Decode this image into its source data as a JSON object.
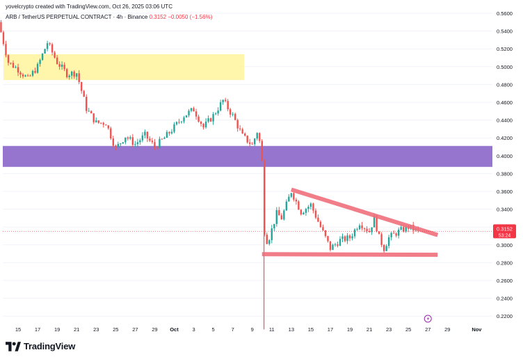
{
  "header": {
    "credit": "yovelcrypto created with TradingView.com, Oct 26, 2025 03:06 UTC",
    "symbol": "ARB / TetherUS PERPETUAL CONTRACT · 4h · Binance",
    "price": "0.3152",
    "change": "−0.0050 (−1.56%)"
  },
  "brand": {
    "name": "TradingView",
    "logo_icon": "tradingview-logo-icon"
  },
  "price_label": {
    "price": "0.3152",
    "countdown": "53:24"
  },
  "colors": {
    "up": "#26a69a",
    "down": "#ef5350",
    "yellow_zone": "#fff59d",
    "purple_zone": "#9575cd",
    "pattern": "#ef6f7c",
    "axis_text": "#131722"
  },
  "chart_data": {
    "type": "candlestick",
    "title": "",
    "timeframe": "4h",
    "yaxis": {
      "ticks": [
        "0.5600",
        "0.5400",
        "0.5200",
        "0.5000",
        "0.4800",
        "0.4600",
        "0.4400",
        "0.4200",
        "0.4000",
        "0.3800",
        "0.3600",
        "0.3400",
        "0.3200",
        "0.3000",
        "0.2800",
        "0.2600",
        "0.2400",
        "0.2200"
      ],
      "range": [
        0.205,
        0.565
      ]
    },
    "xaxis": {
      "ticks": [
        "15",
        "17",
        "19",
        "21",
        "23",
        "25",
        "27",
        "29",
        "Oct",
        "3",
        "5",
        "7",
        "9",
        "11",
        "13",
        "15",
        "17",
        "19",
        "21",
        "23",
        "25",
        "27",
        "29",
        "Nov"
      ]
    },
    "last_price": 0.3152,
    "zones": [
      {
        "name": "yellow-resistance-zone",
        "y_low": 0.485,
        "y_high": 0.514,
        "color": "#fff59d"
      },
      {
        "name": "purple-support-zone",
        "y_low": 0.3875,
        "y_high": 0.411,
        "color": "#9575cd"
      }
    ],
    "triangle": {
      "upper_line": [
        [
          "Oct 13",
          0.362
        ],
        [
          "Oct 28",
          0.311
        ]
      ],
      "lower_line": [
        [
          "Oct 10",
          0.2895
        ],
        [
          "Oct 28",
          0.2888
        ]
      ]
    },
    "path": [
      [
        "Sep 13",
        0.55
      ],
      [
        "Sep 14",
        0.505
      ],
      [
        "Sep 15",
        0.497
      ],
      [
        "Sep 16",
        0.486
      ],
      [
        "Sep 17",
        0.5
      ],
      [
        "Sep 18",
        0.527
      ],
      [
        "Sep 19",
        0.505
      ],
      [
        "Sep 20",
        0.492
      ],
      [
        "Sep 21",
        0.493
      ],
      [
        "Sep 22",
        0.453
      ],
      [
        "Sep 23",
        0.437
      ],
      [
        "Sep 24",
        0.437
      ],
      [
        "Sep 25",
        0.408
      ],
      [
        "Sep 26",
        0.422
      ],
      [
        "Sep 27",
        0.413
      ],
      [
        "Sep 28",
        0.423
      ],
      [
        "Sep 29",
        0.41
      ],
      [
        "Sep 30",
        0.42
      ],
      [
        "Oct 1",
        0.432
      ],
      [
        "Oct 2",
        0.445
      ],
      [
        "Oct 3",
        0.452
      ],
      [
        "Oct 4",
        0.432
      ],
      [
        "Oct 5",
        0.445
      ],
      [
        "Oct 6",
        0.462
      ],
      [
        "Oct 7",
        0.445
      ],
      [
        "Oct 8",
        0.422
      ],
      [
        "Oct 9",
        0.412
      ],
      [
        "Oct 9.6",
        0.43
      ],
      [
        "Oct 10",
        0.393
      ],
      [
        "Oct 10.3",
        0.295
      ],
      [
        "Oct 10.8",
        0.31
      ],
      [
        "Oct 11.5",
        0.335
      ],
      [
        "Oct 12",
        0.33
      ],
      [
        "Oct 13",
        0.36
      ],
      [
        "Oct 14",
        0.337
      ],
      [
        "Oct 15",
        0.345
      ],
      [
        "Oct 16",
        0.32
      ],
      [
        "Oct 17",
        0.296
      ],
      [
        "Oct 18",
        0.305
      ],
      [
        "Oct 19",
        0.308
      ],
      [
        "Oct 20",
        0.325
      ],
      [
        "Oct 21",
        0.315
      ],
      [
        "Oct 21.5",
        0.33
      ],
      [
        "Oct 22",
        0.308
      ],
      [
        "Oct 22.5",
        0.296
      ],
      [
        "Oct 23",
        0.308
      ],
      [
        "Oct 24",
        0.315
      ],
      [
        "Oct 25",
        0.32
      ],
      [
        "Oct 26",
        0.3152
      ]
    ],
    "flash_crash_low": [
      "Oct 10.2",
      0.205
    ]
  }
}
